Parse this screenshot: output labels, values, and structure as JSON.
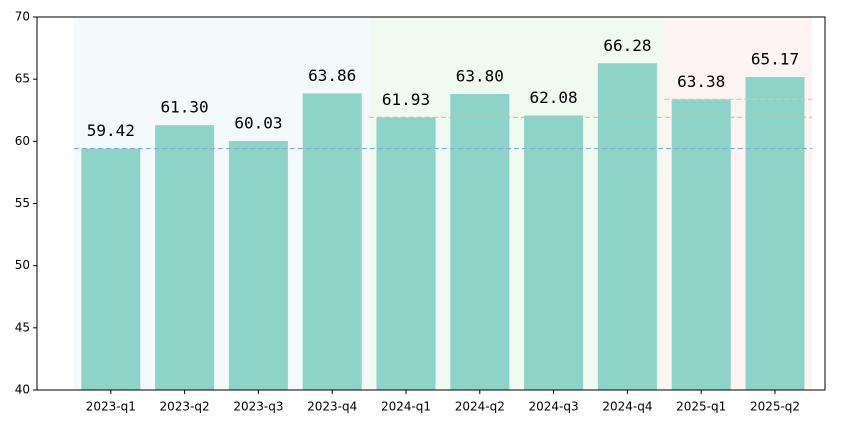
{
  "chart_data": {
    "type": "bar",
    "categories": [
      "2023-q1",
      "2023-q2",
      "2023-q3",
      "2023-q4",
      "2024-q1",
      "2024-q2",
      "2024-q3",
      "2024-q4",
      "2025-q1",
      "2025-q2"
    ],
    "values": [
      59.42,
      61.3,
      60.03,
      63.86,
      61.93,
      63.8,
      62.08,
      66.28,
      63.38,
      65.17
    ],
    "value_labels": [
      "59.42",
      "61.30",
      "60.03",
      "63.86",
      "61.93",
      "63.80",
      "62.08",
      "66.28",
      "63.38",
      "65.17"
    ],
    "color": "#8dd3c7",
    "ylim": [
      40,
      70
    ],
    "yticks": [
      40,
      45,
      50,
      55,
      60,
      65,
      70
    ],
    "regions": [
      {
        "from": "2023-q1",
        "to": "2023-q4",
        "color": "#f4f9fc",
        "line_color": "#7fb2c9"
      },
      {
        "from": "2024-q1",
        "to": "2024-q4",
        "color": "#f0faf0",
        "line_color": "#f4b466"
      },
      {
        "from": "2025-q1",
        "to": "2025-q2",
        "color": "#fdf4f3",
        "line_color": "#f4c07a"
      }
    ]
  }
}
